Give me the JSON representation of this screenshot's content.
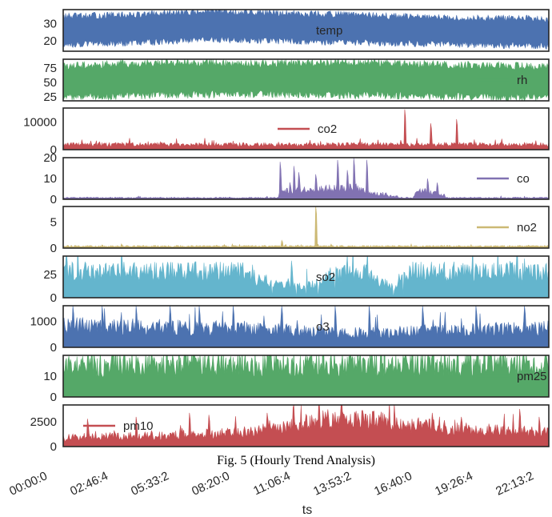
{
  "caption": "Fig. 5 (Hourly Trend Analysis)",
  "chart_data": {
    "type": "line",
    "xlabel": "ts",
    "x_tick_labels": [
      "00:00:0",
      "02:46:4",
      "05:33:2",
      "08:20:0",
      "11:06:4",
      "13:53:2",
      "16:40:0",
      "19:26:4",
      "22:13:2"
    ],
    "series": [
      {
        "name": "temp",
        "color": "#4c72b0",
        "legend": "center",
        "fill": "band",
        "ylim": [
          14,
          38
        ],
        "yticks": [
          20,
          30
        ],
        "segments": [
          [
            0.0,
            18,
            34
          ],
          [
            0.15,
            19,
            35
          ],
          [
            0.3,
            21,
            37
          ],
          [
            0.45,
            20,
            36
          ],
          [
            0.6,
            19,
            35
          ],
          [
            0.8,
            18,
            33
          ],
          [
            1.0,
            17,
            33
          ]
        ]
      },
      {
        "name": "rh",
        "color": "#55a868",
        "legend": "right",
        "fill": "band",
        "ylim": [
          18,
          90
        ],
        "yticks": [
          25,
          50,
          75
        ],
        "segments": [
          [
            0.0,
            25,
            78
          ],
          [
            0.2,
            28,
            85
          ],
          [
            0.4,
            30,
            82
          ],
          [
            0.6,
            28,
            85
          ],
          [
            0.8,
            26,
            80
          ],
          [
            1.0,
            24,
            78
          ]
        ]
      },
      {
        "name": "co2",
        "color": "#c44e52",
        "legend": "center",
        "fill": "floor",
        "ylim": [
          0,
          15000
        ],
        "yticks": [
          0,
          10000
        ],
        "base": [
          [
            0.0,
            2000
          ],
          [
            1.0,
            2000
          ]
        ],
        "spikes": [
          [
            0.02,
            2500
          ],
          [
            0.2,
            2800
          ],
          [
            0.4,
            2500
          ],
          [
            0.6,
            2200
          ],
          [
            0.703,
            14500
          ],
          [
            0.757,
            9500
          ],
          [
            0.81,
            11000
          ],
          [
            0.95,
            2600
          ]
        ]
      },
      {
        "name": "co",
        "color": "#8172b2",
        "legend": "right",
        "fill": "floor",
        "ylim": [
          0,
          20
        ],
        "yticks": [
          0,
          10,
          20
        ],
        "base": [
          [
            0.0,
            0.8
          ],
          [
            0.44,
            0.8
          ],
          [
            0.45,
            4
          ],
          [
            0.52,
            5
          ],
          [
            0.6,
            6
          ],
          [
            0.65,
            3
          ],
          [
            0.7,
            0.8
          ],
          [
            0.72,
            0.8
          ],
          [
            0.73,
            4
          ],
          [
            0.78,
            3
          ],
          [
            0.79,
            0.8
          ],
          [
            1.0,
            0.8
          ]
        ],
        "spikes": [
          [
            0.447,
            18
          ],
          [
            0.475,
            16
          ],
          [
            0.485,
            13
          ],
          [
            0.52,
            12
          ],
          [
            0.565,
            19
          ],
          [
            0.585,
            14
          ],
          [
            0.598,
            20
          ],
          [
            0.625,
            19
          ],
          [
            0.75,
            10
          ],
          [
            0.77,
            8
          ]
        ]
      },
      {
        "name": "no2",
        "color": "#ccb974",
        "legend": "right",
        "fill": "floor",
        "ylim": [
          0,
          8
        ],
        "yticks": [
          0,
          5
        ],
        "base": [
          [
            0.0,
            0.4
          ],
          [
            1.0,
            0.4
          ]
        ],
        "spikes": [
          [
            0.45,
            1.5
          ],
          [
            0.52,
            8.2
          ]
        ]
      },
      {
        "name": "so2",
        "color": "#64b5cd",
        "legend": "center",
        "fill": "floor",
        "ylim": [
          0,
          45
        ],
        "yticks": [
          0,
          25
        ],
        "base": [
          [
            0.0,
            30
          ],
          [
            0.39,
            30
          ],
          [
            0.4,
            20
          ],
          [
            0.45,
            18
          ],
          [
            0.5,
            12
          ],
          [
            0.55,
            26
          ],
          [
            0.62,
            30
          ],
          [
            0.64,
            22
          ],
          [
            0.68,
            12
          ],
          [
            0.7,
            30
          ],
          [
            1.0,
            30
          ]
        ],
        "spikes": [
          [
            0.18,
            37
          ],
          [
            0.47,
            40
          ],
          [
            0.5,
            39
          ],
          [
            0.56,
            37
          ],
          [
            0.62,
            36
          ]
        ],
        "dips": [
          [
            0.43,
            0
          ],
          [
            0.48,
            0
          ],
          [
            0.5,
            0
          ],
          [
            0.525,
            0
          ],
          [
            0.56,
            3
          ],
          [
            0.68,
            0
          ],
          [
            0.7,
            0
          ]
        ]
      },
      {
        "name": "o3",
        "color": "#4c72b0",
        "legend": "center",
        "fill": "floor",
        "ylim": [
          0,
          1600
        ],
        "yticks": [
          0,
          1000
        ],
        "base": [
          [
            0.0,
            900
          ],
          [
            0.3,
            800
          ],
          [
            0.45,
            700
          ],
          [
            0.6,
            600
          ],
          [
            0.8,
            700
          ],
          [
            1.0,
            800
          ]
        ],
        "spikes": [
          [
            0.02,
            1600
          ],
          [
            0.08,
            1600
          ],
          [
            0.15,
            1600
          ],
          [
            0.22,
            1600
          ],
          [
            0.28,
            1600
          ],
          [
            0.35,
            1600
          ],
          [
            0.45,
            1600
          ],
          [
            0.56,
            1600
          ],
          [
            0.63,
            1600
          ],
          [
            0.74,
            1600
          ],
          [
            0.85,
            1600
          ],
          [
            0.95,
            1600
          ]
        ]
      },
      {
        "name": "pm25",
        "color": "#55a868",
        "legend": "right",
        "fill": "floor",
        "ylim": [
          0,
          20
        ],
        "yticks": [
          0,
          10
        ],
        "base": [
          [
            0.0,
            17
          ],
          [
            1.0,
            17
          ]
        ],
        "spikes": [
          [
            0.1,
            20
          ],
          [
            0.3,
            20
          ],
          [
            0.5,
            20
          ],
          [
            0.7,
            20
          ],
          [
            0.9,
            20
          ]
        ]
      },
      {
        "name": "pm10",
        "color": "#c44e52",
        "legend": "left",
        "fill": "floor",
        "ylim": [
          0,
          4200
        ],
        "yticks": [
          0,
          2500
        ],
        "base": [
          [
            0.0,
            1000
          ],
          [
            0.2,
            1200
          ],
          [
            0.35,
            1500
          ],
          [
            0.45,
            2000
          ],
          [
            0.5,
            2600
          ],
          [
            0.55,
            3000
          ],
          [
            0.65,
            2800
          ],
          [
            0.75,
            2200
          ],
          [
            0.85,
            1800
          ],
          [
            1.0,
            1500
          ]
        ],
        "spikes": [
          [
            0.05,
            2800
          ],
          [
            0.15,
            3000
          ],
          [
            0.26,
            3400
          ],
          [
            0.3,
            3200
          ],
          [
            0.42,
            3400
          ],
          [
            0.6,
            3500
          ],
          [
            0.76,
            3400
          ],
          [
            0.82,
            3000
          ],
          [
            0.94,
            3800
          ],
          [
            0.98,
            3000
          ]
        ]
      }
    ]
  }
}
